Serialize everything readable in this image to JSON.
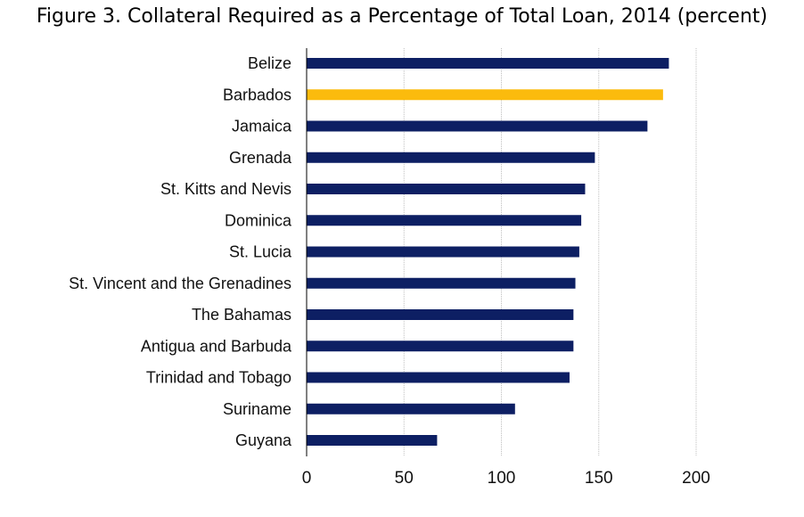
{
  "chart_data": {
    "type": "bar",
    "orientation": "horizontal",
    "title": "Figure 3. Collateral Required as a Percentage of Total Loan, 2014 (percent)",
    "xlabel": "",
    "ylabel": "",
    "categories": [
      "Belize",
      "Barbados",
      "Jamaica",
      "Grenada",
      "St. Kitts and Nevis",
      "Dominica",
      "St. Lucia",
      "St. Vincent and the Grenadines",
      "The Bahamas",
      "Antigua and Barbuda",
      "Trinidad and Tobago",
      "Suriname",
      "Guyana"
    ],
    "values": [
      186,
      183,
      175,
      148,
      143,
      141,
      140,
      138,
      137,
      137,
      135,
      107,
      67
    ],
    "xlim": [
      0,
      200
    ],
    "xticks": [
      0,
      50,
      100,
      150,
      200
    ],
    "grid": true,
    "colors": {
      "default_bar": "#0d1f63",
      "highlight_bar": "#fbbb0d",
      "gridline": "#bfbfbf",
      "axis": "#000000"
    },
    "highlight_category": "Barbados"
  }
}
